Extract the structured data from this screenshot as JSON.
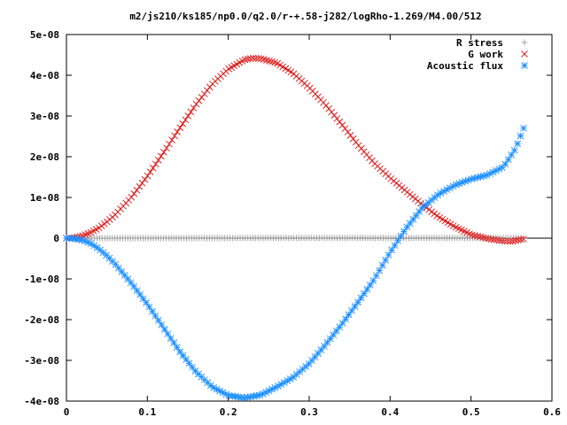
{
  "chart_data": {
    "type": "scatter",
    "title": "m2/js210/ks185/np0.0/q2.0/r-+.58-j282/logRho-1.269/M4.00/512",
    "xlabel": "",
    "ylabel": "",
    "xlim": [
      0,
      0.6
    ],
    "ylim": [
      -4e-08,
      5e-08
    ],
    "x_ticks": [
      0,
      0.1,
      0.2,
      0.3,
      0.4,
      0.5,
      0.6
    ],
    "x_tick_labels": [
      "0",
      "0.1",
      "0.2",
      "0.3",
      "0.4",
      "0.5",
      "0.6"
    ],
    "y_ticks": [
      -4e-08,
      -3e-08,
      -2e-08,
      -1e-08,
      0,
      1e-08,
      2e-08,
      3e-08,
      4e-08,
      5e-08
    ],
    "y_tick_labels": [
      "-4e-08",
      "-3e-08",
      "-2e-08",
      "-1e-08",
      "0",
      "1e-08",
      "2e-08",
      "3e-08",
      "4e-08",
      "5e-08"
    ],
    "grid": false,
    "legend_position": "top-right",
    "series": [
      {
        "name": "R stress",
        "marker": "plus",
        "color": "#a0a0a0",
        "points": [
          [
            0.0,
            0
          ],
          [
            0.05,
            1e-11
          ],
          [
            0.1,
            2e-11
          ],
          [
            0.15,
            3e-11
          ],
          [
            0.2,
            4e-11
          ],
          [
            0.25,
            5e-11
          ],
          [
            0.3,
            5e-11
          ],
          [
            0.35,
            5e-11
          ],
          [
            0.4,
            5e-11
          ],
          [
            0.45,
            5e-11
          ],
          [
            0.5,
            4e-11
          ],
          [
            0.565,
            3e-11
          ]
        ]
      },
      {
        "name": "G work",
        "marker": "cross",
        "color": "#dd2222",
        "points": [
          [
            0.0,
            0
          ],
          [
            0.01,
            1.5e-10
          ],
          [
            0.02,
            6e-10
          ],
          [
            0.03,
            1.4e-09
          ],
          [
            0.04,
            2.5e-09
          ],
          [
            0.05,
            4e-09
          ],
          [
            0.06,
            5.7e-09
          ],
          [
            0.08,
            1e-08
          ],
          [
            0.1,
            1.52e-08
          ],
          [
            0.12,
            2.1e-08
          ],
          [
            0.14,
            2.7e-08
          ],
          [
            0.16,
            3.28e-08
          ],
          [
            0.18,
            3.78e-08
          ],
          [
            0.2,
            4.15e-08
          ],
          [
            0.22,
            4.38e-08
          ],
          [
            0.23,
            4.42e-08
          ],
          [
            0.24,
            4.41e-08
          ],
          [
            0.26,
            4.3e-08
          ],
          [
            0.28,
            4.05e-08
          ],
          [
            0.3,
            3.7e-08
          ],
          [
            0.32,
            3.28e-08
          ],
          [
            0.34,
            2.8e-08
          ],
          [
            0.36,
            2.3e-08
          ],
          [
            0.38,
            1.85e-08
          ],
          [
            0.4,
            1.48e-08
          ],
          [
            0.42,
            1.15e-08
          ],
          [
            0.44,
            8.2e-09
          ],
          [
            0.46,
            5.2e-09
          ],
          [
            0.48,
            2.8e-09
          ],
          [
            0.5,
            9e-10
          ],
          [
            0.52,
            -1e-10
          ],
          [
            0.54,
            -7e-10
          ],
          [
            0.55,
            -8e-10
          ],
          [
            0.565,
            -2e-10
          ]
        ]
      },
      {
        "name": "Acoustic flux",
        "marker": "star",
        "color": "#1e90ff",
        "points": [
          [
            0.0,
            0
          ],
          [
            0.01,
            -1e-10
          ],
          [
            0.02,
            -5e-10
          ],
          [
            0.03,
            -1.3e-09
          ],
          [
            0.04,
            -2.6e-09
          ],
          [
            0.05,
            -4.3e-09
          ],
          [
            0.06,
            -6.3e-09
          ],
          [
            0.08,
            -1.1e-08
          ],
          [
            0.1,
            -1.62e-08
          ],
          [
            0.12,
            -2.2e-08
          ],
          [
            0.14,
            -2.78e-08
          ],
          [
            0.16,
            -3.28e-08
          ],
          [
            0.18,
            -3.65e-08
          ],
          [
            0.2,
            -3.86e-08
          ],
          [
            0.22,
            -3.92e-08
          ],
          [
            0.24,
            -3.85e-08
          ],
          [
            0.26,
            -3.65e-08
          ],
          [
            0.28,
            -3.42e-08
          ],
          [
            0.3,
            -3.08e-08
          ],
          [
            0.32,
            -2.62e-08
          ],
          [
            0.34,
            -2.12e-08
          ],
          [
            0.36,
            -1.58e-08
          ],
          [
            0.38,
            -1.02e-08
          ],
          [
            0.4,
            -3.5e-09
          ],
          [
            0.42,
            2.5e-09
          ],
          [
            0.44,
            7.5e-09
          ],
          [
            0.46,
            1.08e-08
          ],
          [
            0.48,
            1.3e-08
          ],
          [
            0.5,
            1.45e-08
          ],
          [
            0.52,
            1.55e-08
          ],
          [
            0.54,
            1.75e-08
          ],
          [
            0.555,
            2.2e-08
          ],
          [
            0.565,
            2.7e-08
          ]
        ]
      }
    ]
  }
}
